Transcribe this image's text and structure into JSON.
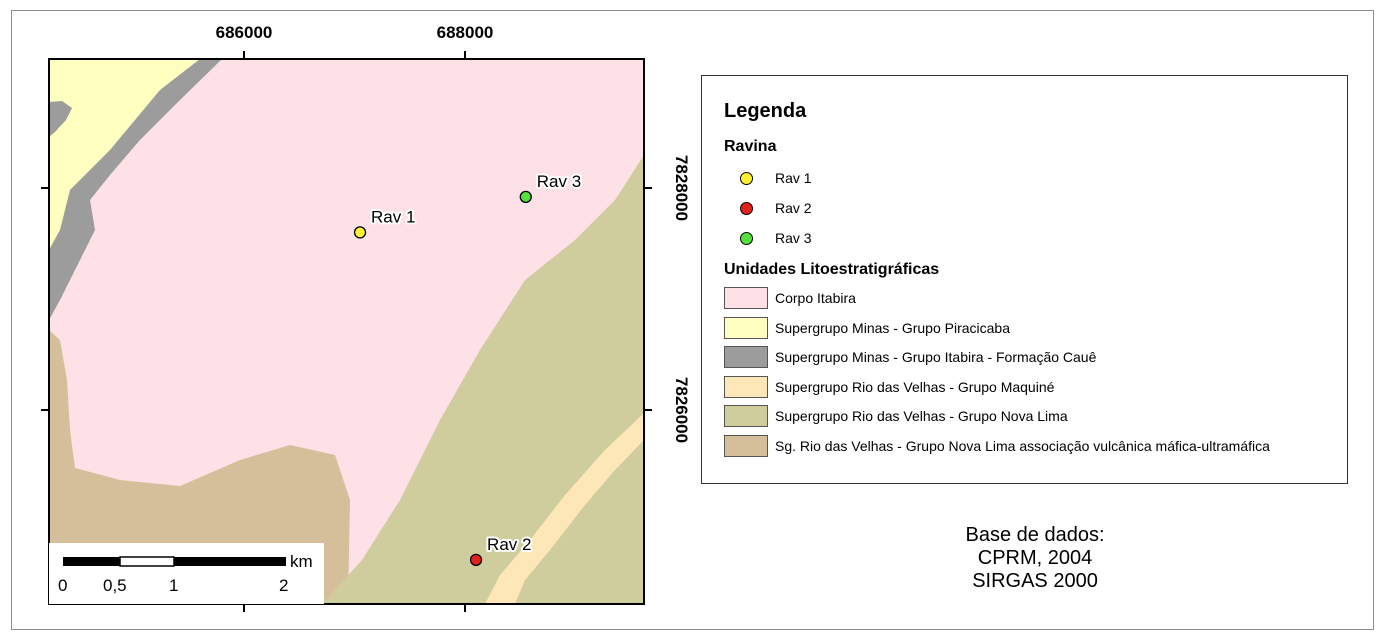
{
  "map": {
    "x_ticks": [
      "686000",
      "688000"
    ],
    "y_ticks": [
      "7828000",
      "7826000"
    ],
    "points": [
      {
        "label": "Rav 1",
        "color": "#fff033",
        "easting": 687050,
        "northing": 7827600
      },
      {
        "label": "Rav 2",
        "color": "#e3211c",
        "easting": 688100,
        "northing": 7824650
      },
      {
        "label": "Rav 3",
        "color": "#55e03c",
        "easting": 688550,
        "northing": 7827920
      }
    ],
    "unit_colors": {
      "corpo_itabira": "#fde1e7",
      "piracicaba": "#ffffc0",
      "caue": "#9c9c9c",
      "maquine": "#fde6b7",
      "nova_lima": "#cfcd9d",
      "vulcanica": "#d4bf9a"
    }
  },
  "scale_bar": {
    "unit": "km",
    "labels": [
      "0",
      "0,5",
      "1",
      "2"
    ]
  },
  "legend": {
    "title": "Legenda",
    "ravina_heading": "Ravina",
    "ravina_items": [
      {
        "label": "Rav 1",
        "color": "#fff033"
      },
      {
        "label": "Rav 2",
        "color": "#e3211c"
      },
      {
        "label": "Rav 3",
        "color": "#55e03c"
      }
    ],
    "units_heading": "Unidades Litoestratigráficas",
    "units": [
      {
        "label": "Corpo Itabira",
        "color": "#fde1e7"
      },
      {
        "label": "Supergrupo Minas - Grupo Piracicaba",
        "color": "#ffffc0"
      },
      {
        "label": "Supergrupo Minas - Grupo Itabira - Formação Cauê",
        "color": "#9c9c9c"
      },
      {
        "label": "Supergrupo Rio das Velhas - Grupo Maquiné",
        "color": "#fde6b7"
      },
      {
        "label": "Supergrupo Rio das Velhas - Grupo Nova Lima",
        "color": "#cfcd9d"
      },
      {
        "label": "Sg. Rio das Velhas - Grupo Nova Lima associação vulcânica máfica-ultramáfica",
        "color": "#d4bf9a"
      }
    ]
  },
  "credits": {
    "line1": "Base de dados:",
    "line2": "CPRM, 2004",
    "line3": "SIRGAS 2000"
  }
}
